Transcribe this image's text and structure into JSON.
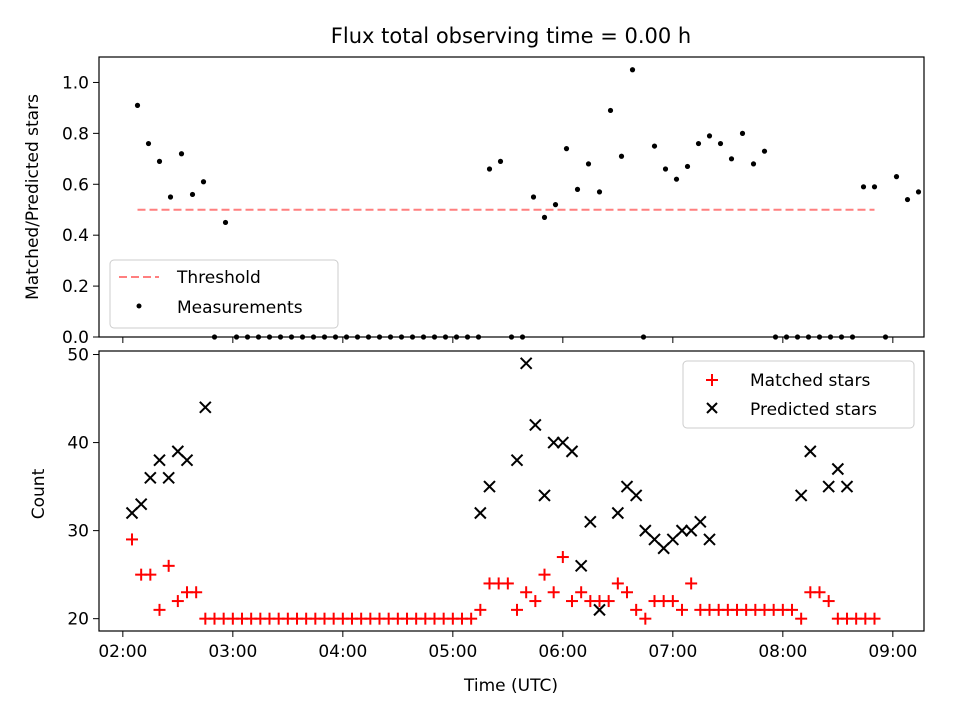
{
  "figure_title": "Flux total observing time = 0.00 h",
  "chart_data": [
    {
      "type": "scatter",
      "ylabel": "Matched/Predicted stars",
      "ylim": [
        0,
        1.1
      ],
      "yticks": [
        0.0,
        0.2,
        0.4,
        0.6,
        0.8,
        1.0
      ],
      "ytick_labels": [
        "0.0",
        "0.2",
        "0.4",
        "0.6",
        "0.8",
        "1.0"
      ],
      "xlim": [
        "01:47",
        "09:17"
      ],
      "grid": false,
      "legend_position": "lower-left",
      "threshold": {
        "name": "Threshold",
        "value": 0.5,
        "x_start": "02:08",
        "x_end": "08:50",
        "color": "#ff7f7f"
      },
      "series": [
        {
          "name": "Measurements",
          "color": "#000000",
          "points": [
            [
              "02:08",
              0.91
            ],
            [
              "02:14",
              0.76
            ],
            [
              "02:20",
              0.69
            ],
            [
              "02:26",
              0.55
            ],
            [
              "02:32",
              0.72
            ],
            [
              "02:38",
              0.56
            ],
            [
              "02:44",
              0.61
            ],
            [
              "02:50",
              0.0
            ],
            [
              "02:56",
              0.45
            ],
            [
              "03:02",
              0.0
            ],
            [
              "03:08",
              0.0
            ],
            [
              "03:14",
              0.0
            ],
            [
              "03:20",
              0.0
            ],
            [
              "03:26",
              0.0
            ],
            [
              "03:32",
              0.0
            ],
            [
              "03:38",
              0.0
            ],
            [
              "03:44",
              0.0
            ],
            [
              "03:50",
              0.0
            ],
            [
              "03:56",
              0.0
            ],
            [
              "04:02",
              0.0
            ],
            [
              "04:08",
              0.0
            ],
            [
              "04:14",
              0.0
            ],
            [
              "04:20",
              0.0
            ],
            [
              "04:26",
              0.0
            ],
            [
              "04:32",
              0.0
            ],
            [
              "04:38",
              0.0
            ],
            [
              "04:44",
              0.0
            ],
            [
              "04:50",
              0.0
            ],
            [
              "04:56",
              0.0
            ],
            [
              "05:02",
              0.0
            ],
            [
              "05:08",
              0.0
            ],
            [
              "05:14",
              0.0
            ],
            [
              "05:20",
              0.66
            ],
            [
              "05:26",
              0.69
            ],
            [
              "05:32",
              0.0
            ],
            [
              "05:38",
              0.0
            ],
            [
              "05:44",
              0.55
            ],
            [
              "05:50",
              0.47
            ],
            [
              "05:56",
              0.52
            ],
            [
              "06:02",
              0.74
            ],
            [
              "06:08",
              0.58
            ],
            [
              "06:14",
              0.68
            ],
            [
              "06:20",
              0.57
            ],
            [
              "06:26",
              0.89
            ],
            [
              "06:32",
              0.71
            ],
            [
              "06:38",
              1.05
            ],
            [
              "06:44",
              0.0
            ],
            [
              "06:50",
              0.75
            ],
            [
              "06:56",
              0.66
            ],
            [
              "07:02",
              0.62
            ],
            [
              "07:08",
              0.67
            ],
            [
              "07:14",
              0.76
            ],
            [
              "07:20",
              0.79
            ],
            [
              "07:26",
              0.76
            ],
            [
              "07:32",
              0.7
            ],
            [
              "07:38",
              0.8
            ],
            [
              "07:44",
              0.68
            ],
            [
              "07:50",
              0.73
            ],
            [
              "07:56",
              0.0
            ],
            [
              "08:02",
              0.0
            ],
            [
              "08:08",
              0.0
            ],
            [
              "08:14",
              0.0
            ],
            [
              "08:20",
              0.0
            ],
            [
              "08:26",
              0.0
            ],
            [
              "08:32",
              0.0
            ],
            [
              "08:38",
              0.0
            ],
            [
              "08:44",
              0.59
            ],
            [
              "08:50",
              0.59
            ],
            [
              "08:56",
              0.0
            ],
            [
              "09:02",
              0.63
            ],
            [
              "09:08",
              0.54
            ],
            [
              "09:14",
              0.57
            ]
          ]
        }
      ],
      "legend": [
        "Threshold",
        "Measurements"
      ]
    },
    {
      "type": "scatter",
      "xlabel": "Time (UTC)",
      "ylabel": "Count",
      "ylim": [
        18.6,
        50.4
      ],
      "yticks": [
        20,
        30,
        40,
        50
      ],
      "ytick_labels": [
        "20",
        "30",
        "40",
        "50"
      ],
      "xlim": [
        "01:47",
        "09:17"
      ],
      "xticks": [
        "02:00",
        "03:00",
        "04:00",
        "05:00",
        "06:00",
        "07:00",
        "08:00",
        "09:00"
      ],
      "xtick_labels": [
        "02:00",
        "03:00",
        "04:00",
        "05:00",
        "06:00",
        "07:00",
        "08:00",
        "09:00"
      ],
      "grid": false,
      "legend_position": "upper-right",
      "series": [
        {
          "name": "Matched stars",
          "marker": "plus",
          "color": "#ff0000",
          "points": [
            [
              "02:05",
              29
            ],
            [
              "02:10",
              25
            ],
            [
              "02:15",
              25
            ],
            [
              "02:20",
              21
            ],
            [
              "02:25",
              26
            ],
            [
              "02:30",
              22
            ],
            [
              "02:35",
              23
            ],
            [
              "02:40",
              23
            ],
            [
              "02:45",
              20
            ],
            [
              "02:50",
              20
            ],
            [
              "02:55",
              20
            ],
            [
              "03:00",
              20
            ],
            [
              "03:05",
              20
            ],
            [
              "03:10",
              20
            ],
            [
              "03:15",
              20
            ],
            [
              "03:20",
              20
            ],
            [
              "03:25",
              20
            ],
            [
              "03:30",
              20
            ],
            [
              "03:35",
              20
            ],
            [
              "03:40",
              20
            ],
            [
              "03:45",
              20
            ],
            [
              "03:50",
              20
            ],
            [
              "03:55",
              20
            ],
            [
              "04:00",
              20
            ],
            [
              "04:05",
              20
            ],
            [
              "04:10",
              20
            ],
            [
              "04:15",
              20
            ],
            [
              "04:20",
              20
            ],
            [
              "04:25",
              20
            ],
            [
              "04:30",
              20
            ],
            [
              "04:35",
              20
            ],
            [
              "04:40",
              20
            ],
            [
              "04:45",
              20
            ],
            [
              "04:50",
              20
            ],
            [
              "04:55",
              20
            ],
            [
              "05:00",
              20
            ],
            [
              "05:05",
              20
            ],
            [
              "05:10",
              20
            ],
            [
              "05:15",
              21
            ],
            [
              "05:20",
              24
            ],
            [
              "05:25",
              24
            ],
            [
              "05:30",
              24
            ],
            [
              "05:35",
              21
            ],
            [
              "05:40",
              23
            ],
            [
              "05:45",
              22
            ],
            [
              "05:50",
              25
            ],
            [
              "05:55",
              23
            ],
            [
              "06:00",
              27
            ],
            [
              "06:05",
              22
            ],
            [
              "06:10",
              23
            ],
            [
              "06:15",
              22
            ],
            [
              "06:20",
              22
            ],
            [
              "06:25",
              22
            ],
            [
              "06:30",
              24
            ],
            [
              "06:35",
              23
            ],
            [
              "06:40",
              21
            ],
            [
              "06:45",
              20
            ],
            [
              "06:50",
              22
            ],
            [
              "06:55",
              22
            ],
            [
              "07:00",
              22
            ],
            [
              "07:05",
              21
            ],
            [
              "07:10",
              24
            ],
            [
              "07:15",
              21
            ],
            [
              "07:20",
              21
            ],
            [
              "07:25",
              21
            ],
            [
              "07:30",
              21
            ],
            [
              "07:35",
              21
            ],
            [
              "07:40",
              21
            ],
            [
              "07:45",
              21
            ],
            [
              "07:50",
              21
            ],
            [
              "07:55",
              21
            ],
            [
              "08:00",
              21
            ],
            [
              "08:05",
              21
            ],
            [
              "08:10",
              20
            ],
            [
              "08:15",
              23
            ],
            [
              "08:20",
              23
            ],
            [
              "08:25",
              22
            ],
            [
              "08:30",
              20
            ],
            [
              "08:35",
              20
            ],
            [
              "08:40",
              20
            ],
            [
              "08:45",
              20
            ],
            [
              "08:50",
              20
            ]
          ]
        },
        {
          "name": "Predicted stars",
          "marker": "x",
          "color": "#000000",
          "points": [
            [
              "02:05",
              32
            ],
            [
              "02:10",
              33
            ],
            [
              "02:15",
              36
            ],
            [
              "02:20",
              38
            ],
            [
              "02:25",
              36
            ],
            [
              "02:30",
              39
            ],
            [
              "02:35",
              38
            ],
            [
              "02:45",
              44
            ],
            [
              "05:15",
              32
            ],
            [
              "05:20",
              35
            ],
            [
              "05:35",
              38
            ],
            [
              "05:40",
              49
            ],
            [
              "05:45",
              42
            ],
            [
              "05:50",
              34
            ],
            [
              "05:55",
              40
            ],
            [
              "06:00",
              40
            ],
            [
              "06:05",
              39
            ],
            [
              "06:10",
              26
            ],
            [
              "06:15",
              31
            ],
            [
              "06:20",
              21
            ],
            [
              "06:30",
              32
            ],
            [
              "06:35",
              35
            ],
            [
              "06:40",
              34
            ],
            [
              "06:45",
              30
            ],
            [
              "06:50",
              29
            ],
            [
              "06:55",
              28
            ],
            [
              "07:00",
              29
            ],
            [
              "07:05",
              30
            ],
            [
              "07:10",
              30
            ],
            [
              "07:15",
              31
            ],
            [
              "07:20",
              29
            ],
            [
              "08:10",
              34
            ],
            [
              "08:15",
              39
            ],
            [
              "08:25",
              35
            ],
            [
              "08:30",
              37
            ],
            [
              "08:35",
              35
            ]
          ]
        }
      ],
      "legend": [
        "Matched stars",
        "Predicted stars"
      ]
    }
  ]
}
